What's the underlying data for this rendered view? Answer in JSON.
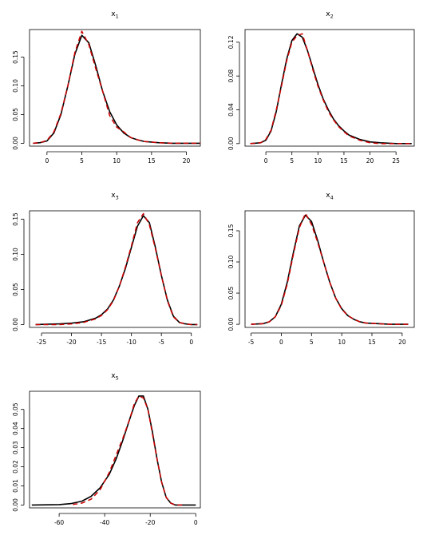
{
  "colors": {
    "solid": "#000000",
    "dashed": "#cc0000"
  },
  "chart_data": [
    {
      "type": "line",
      "title": "x",
      "title_sub": "1",
      "xlim": [
        -2.5,
        22
      ],
      "ylim": [
        -0.005,
        0.198
      ],
      "xticks": [
        0,
        5,
        10,
        15,
        20
      ],
      "yticks": [
        0.0,
        0.05,
        0.1,
        0.15
      ],
      "ytick_labels": [
        "0.00",
        "0.05",
        "0.10",
        "0.15"
      ],
      "series": [
        {
          "style": "solid",
          "x": [
            -2,
            -1,
            0,
            1,
            2,
            3,
            4,
            5,
            6,
            7,
            8,
            9,
            10,
            11,
            12,
            13,
            14,
            15,
            16,
            18,
            20,
            22
          ],
          "values": [
            0,
            0.001,
            0.004,
            0.018,
            0.05,
            0.1,
            0.155,
            0.188,
            0.175,
            0.135,
            0.09,
            0.055,
            0.032,
            0.018,
            0.01,
            0.006,
            0.003,
            0.002,
            0.001,
            0,
            0,
            0
          ]
        },
        {
          "style": "dashed",
          "x": [
            -2,
            -1,
            0,
            1,
            2,
            3,
            4,
            5,
            6,
            7,
            8,
            9,
            10,
            11,
            12,
            13,
            14,
            15,
            16,
            18,
            20,
            22
          ],
          "values": [
            0,
            0.001,
            0.005,
            0.02,
            0.052,
            0.1,
            0.158,
            0.195,
            0.172,
            0.13,
            0.09,
            0.048,
            0.028,
            0.02,
            0.01,
            0.006,
            0.003,
            0.002,
            0.001,
            0,
            0,
            0
          ]
        }
      ]
    },
    {
      "type": "line",
      "title": "x",
      "title_sub": "2",
      "xlim": [
        -4,
        28.5
      ],
      "ylim": [
        -0.003,
        0.135
      ],
      "xticks": [
        0,
        5,
        10,
        15,
        20,
        25
      ],
      "yticks": [
        0.0,
        0.04,
        0.08,
        0.12
      ],
      "ytick_labels": [
        "0.00",
        "0.04",
        "0.08",
        "0.12"
      ],
      "series": [
        {
          "style": "solid",
          "x": [
            -3,
            -1,
            0,
            1,
            2,
            3,
            4,
            5,
            6,
            7,
            8,
            9,
            10,
            11,
            12,
            13,
            14,
            15,
            16,
            18,
            20,
            22,
            25,
            28
          ],
          "values": [
            0,
            0.001,
            0.004,
            0.015,
            0.038,
            0.07,
            0.1,
            0.122,
            0.13,
            0.126,
            0.11,
            0.09,
            0.07,
            0.053,
            0.04,
            0.029,
            0.021,
            0.015,
            0.01,
            0.005,
            0.002,
            0.001,
            0,
            0
          ]
        },
        {
          "style": "dashed",
          "x": [
            -3,
            -1,
            0,
            1,
            2,
            3,
            4,
            5,
            6,
            7,
            8,
            9,
            10,
            11,
            12,
            13,
            14,
            15,
            16,
            18,
            20,
            22,
            25,
            28
          ],
          "values": [
            0,
            0.001,
            0.005,
            0.016,
            0.04,
            0.068,
            0.098,
            0.12,
            0.128,
            0.13,
            0.11,
            0.088,
            0.068,
            0.052,
            0.038,
            0.028,
            0.02,
            0.014,
            0.009,
            0.004,
            0.001,
            0,
            0,
            0
          ]
        }
      ]
    },
    {
      "type": "line",
      "title": "x",
      "title_sub": "3",
      "xlim": [
        -27,
        1.5
      ],
      "ylim": [
        -0.004,
        0.162
      ],
      "xticks": [
        -25,
        -20,
        -15,
        -10,
        -5,
        0
      ],
      "yticks": [
        0.0,
        0.05,
        0.1,
        0.15
      ],
      "ytick_labels": [
        "0.00",
        "0.05",
        "0.10",
        "0.15"
      ],
      "series": [
        {
          "style": "solid",
          "x": [
            -26,
            -22,
            -20,
            -18,
            -16,
            -15,
            -14,
            -13,
            -12,
            -11,
            -10,
            -9,
            -8,
            -7,
            -6,
            -5,
            -4,
            -3,
            -2,
            -1,
            0,
            1
          ],
          "values": [
            0,
            0.001,
            0.002,
            0.004,
            0.009,
            0.014,
            0.022,
            0.035,
            0.055,
            0.08,
            0.11,
            0.14,
            0.155,
            0.145,
            0.11,
            0.07,
            0.035,
            0.012,
            0.003,
            0.001,
            0,
            0
          ]
        },
        {
          "style": "dashed",
          "x": [
            -26,
            -22,
            -20,
            -18,
            -16,
            -15,
            -14,
            -13,
            -12,
            -11,
            -10,
            -9,
            -8,
            -7,
            -6,
            -5,
            -4,
            -3,
            -2,
            -1,
            0,
            1
          ],
          "values": [
            0,
            0,
            0.001,
            0.003,
            0.008,
            0.013,
            0.021,
            0.034,
            0.055,
            0.082,
            0.112,
            0.145,
            0.158,
            0.142,
            0.108,
            0.07,
            0.034,
            0.011,
            0.003,
            0.001,
            0,
            0
          ]
        }
      ]
    },
    {
      "type": "line",
      "title": "x",
      "title_sub": "4",
      "xlim": [
        -6,
        22
      ],
      "ylim": [
        -0.005,
        0.182
      ],
      "xticks": [
        -5,
        0,
        5,
        10,
        15,
        20
      ],
      "yticks": [
        0.0,
        0.05,
        0.1,
        0.15
      ],
      "ytick_labels": [
        "0.00",
        "0.05",
        "0.10",
        "0.15"
      ],
      "series": [
        {
          "style": "solid",
          "x": [
            -5,
            -3,
            -2,
            -1,
            0,
            1,
            2,
            3,
            4,
            5,
            6,
            7,
            8,
            9,
            10,
            11,
            12,
            13,
            14,
            16,
            18,
            21
          ],
          "values": [
            0,
            0.001,
            0.004,
            0.012,
            0.032,
            0.068,
            0.115,
            0.158,
            0.175,
            0.165,
            0.135,
            0.1,
            0.068,
            0.042,
            0.025,
            0.014,
            0.008,
            0.004,
            0.002,
            0.001,
            0,
            0
          ]
        },
        {
          "style": "dashed",
          "x": [
            -5,
            -3,
            -2,
            -1,
            0,
            1,
            2,
            3,
            4,
            5,
            6,
            7,
            8,
            9,
            10,
            11,
            12,
            13,
            14,
            16,
            18,
            21
          ],
          "values": [
            0,
            0.001,
            0.004,
            0.012,
            0.03,
            0.065,
            0.112,
            0.155,
            0.178,
            0.16,
            0.132,
            0.1,
            0.068,
            0.042,
            0.024,
            0.014,
            0.008,
            0.004,
            0.002,
            0.001,
            0,
            0
          ]
        }
      ]
    },
    {
      "type": "line",
      "title": "x",
      "title_sub": "5",
      "xlim": [
        -73,
        2
      ],
      "ylim": [
        -0.0015,
        0.0595
      ],
      "xticks": [
        -60,
        -40,
        -20,
        0
      ],
      "yticks": [
        0.0,
        0.01,
        0.02,
        0.03,
        0.04,
        0.05
      ],
      "ytick_labels": [
        "0.00",
        "0.01",
        "0.02",
        "0.03",
        "0.04",
        "0.05"
      ],
      "series": [
        {
          "style": "solid",
          "x": [
            -72,
            -60,
            -55,
            -50,
            -46,
            -42,
            -38,
            -35,
            -32,
            -29,
            -27,
            -25,
            -23,
            -21,
            -19,
            -17,
            -15,
            -13,
            -11,
            -9,
            -6,
            0
          ],
          "values": [
            0,
            0.0002,
            0.0007,
            0.002,
            0.0045,
            0.009,
            0.016,
            0.024,
            0.034,
            0.045,
            0.052,
            0.057,
            0.057,
            0.05,
            0.038,
            0.024,
            0.012,
            0.004,
            0.001,
            0,
            0,
            0
          ]
        },
        {
          "style": "dashed",
          "x": [
            -54,
            -50,
            -46,
            -42,
            -38,
            -35,
            -32,
            -29,
            -27,
            -25,
            -23,
            -21,
            -19,
            -17,
            -15,
            -13,
            -11,
            -9,
            -6
          ],
          "values": [
            0.0003,
            0.001,
            0.003,
            0.008,
            0.017,
            0.026,
            0.035,
            0.045,
            0.053,
            0.057,
            0.056,
            0.05,
            0.037,
            0.024,
            0.012,
            0.004,
            0.001,
            0,
            0
          ]
        }
      ]
    }
  ]
}
